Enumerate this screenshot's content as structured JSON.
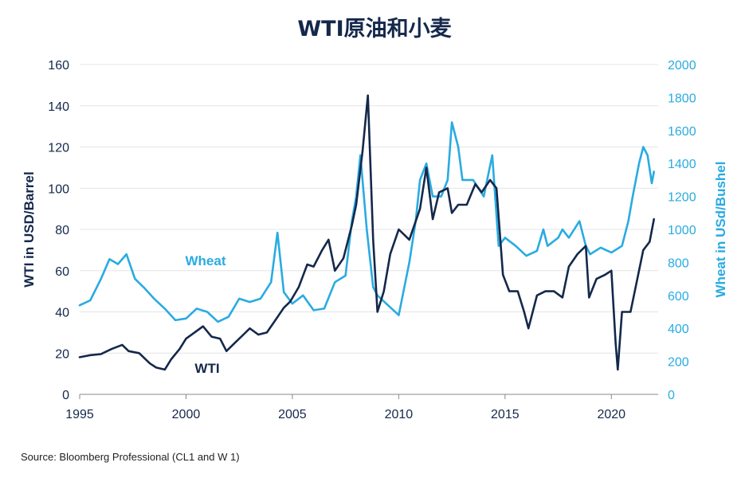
{
  "chart_data": {
    "type": "line",
    "title": "WTI原油和小麦",
    "source": "Source: Bloomberg Professional  (CL1 and W 1)",
    "x_axis": {
      "ticks": [
        1995,
        2000,
        2005,
        2010,
        2015,
        2020
      ],
      "range": [
        1995,
        2022.2
      ]
    },
    "y_left": {
      "label": "WTI in USD/Barrel",
      "range": [
        0,
        160
      ],
      "ticks": [
        0,
        20,
        40,
        60,
        80,
        100,
        120,
        140,
        160
      ]
    },
    "y_right": {
      "label": "Wheat in USd/Bushel",
      "range": [
        0,
        2000
      ],
      "ticks": [
        0,
        200,
        400,
        600,
        800,
        1000,
        1200,
        1400,
        1600,
        1800,
        2000
      ]
    },
    "grid": true,
    "colors": {
      "wti": "#14284b",
      "wheat": "#29abe2"
    },
    "series": [
      {
        "name": "WTI",
        "label": "WTI",
        "axis": "left",
        "x": [
          1995.0,
          1995.5,
          1996.0,
          1996.5,
          1997.0,
          1997.3,
          1997.8,
          1998.3,
          1998.6,
          1999.0,
          1999.3,
          1999.7,
          2000.0,
          2000.4,
          2000.8,
          2001.2,
          2001.6,
          2001.9,
          2002.3,
          2002.7,
          2003.0,
          2003.4,
          2003.8,
          2004.2,
          2004.6,
          2004.9,
          2005.3,
          2005.7,
          2006.0,
          2006.4,
          2006.7,
          2007.0,
          2007.4,
          2007.8,
          2008.0,
          2008.3,
          2008.55,
          2008.8,
          2009.0,
          2009.3,
          2009.6,
          2010.0,
          2010.5,
          2011.0,
          2011.3,
          2011.6,
          2011.9,
          2012.3,
          2012.5,
          2012.8,
          2013.2,
          2013.6,
          2013.9,
          2014.3,
          2014.6,
          2014.9,
          2015.2,
          2015.6,
          2015.9,
          2016.1,
          2016.5,
          2016.9,
          2017.3,
          2017.7,
          2018.0,
          2018.4,
          2018.8,
          2018.95,
          2019.3,
          2019.7,
          2020.0,
          2020.2,
          2020.3,
          2020.5,
          2020.9,
          2021.2,
          2021.5,
          2021.8,
          2022.0
        ],
        "values": [
          18,
          19,
          19.5,
          22,
          24,
          21,
          20,
          15,
          13,
          12,
          17,
          22,
          27,
          30,
          33,
          28,
          27,
          21,
          25,
          29,
          32,
          29,
          30,
          36,
          42,
          45,
          52,
          63,
          62,
          70,
          75,
          60,
          66,
          82,
          92,
          118,
          145,
          75,
          40,
          50,
          68,
          80,
          75,
          90,
          110,
          85,
          98,
          100,
          88,
          92,
          92,
          102,
          98,
          104,
          100,
          58,
          50,
          50,
          40,
          32,
          48,
          50,
          50,
          47,
          62,
          68,
          72,
          47,
          56,
          58,
          60,
          25,
          12,
          40,
          40,
          55,
          70,
          74,
          85
        ]
      },
      {
        "name": "Wheat",
        "label": "Wheat",
        "axis": "right",
        "x": [
          1995.0,
          1995.5,
          1996.0,
          1996.4,
          1996.8,
          1997.2,
          1997.6,
          1998.0,
          1998.5,
          1999.0,
          1999.5,
          2000.0,
          2000.5,
          2001.0,
          2001.5,
          2002.0,
          2002.5,
          2003.0,
          2003.5,
          2004.0,
          2004.3,
          2004.6,
          2005.0,
          2005.5,
          2006.0,
          2006.5,
          2007.0,
          2007.5,
          2007.8,
          2008.0,
          2008.2,
          2008.5,
          2008.8,
          2009.0,
          2009.5,
          2010.0,
          2010.5,
          2010.8,
          2011.0,
          2011.3,
          2011.6,
          2012.0,
          2012.3,
          2012.5,
          2012.8,
          2013.0,
          2013.5,
          2014.0,
          2014.4,
          2014.7,
          2015.0,
          2015.5,
          2016.0,
          2016.5,
          2016.8,
          2017.0,
          2017.5,
          2017.7,
          2018.0,
          2018.5,
          2018.8,
          2019.0,
          2019.5,
          2020.0,
          2020.5,
          2020.8,
          2021.0,
          2021.3,
          2021.5,
          2021.7,
          2021.9,
          2022.0
        ],
        "values": [
          540,
          570,
          700,
          820,
          790,
          850,
          700,
          650,
          580,
          520,
          450,
          460,
          520,
          500,
          440,
          470,
          580,
          560,
          580,
          680,
          980,
          620,
          550,
          600,
          510,
          520,
          680,
          720,
          1050,
          1200,
          1450,
          1000,
          650,
          600,
          540,
          480,
          800,
          1050,
          1300,
          1400,
          1200,
          1200,
          1300,
          1650,
          1500,
          1300,
          1300,
          1200,
          1450,
          900,
          950,
          900,
          840,
          870,
          1000,
          900,
          950,
          1000,
          950,
          1050,
          900,
          850,
          890,
          860,
          900,
          1050,
          1200,
          1400,
          1500,
          1450,
          1280,
          1350
        ]
      }
    ]
  }
}
